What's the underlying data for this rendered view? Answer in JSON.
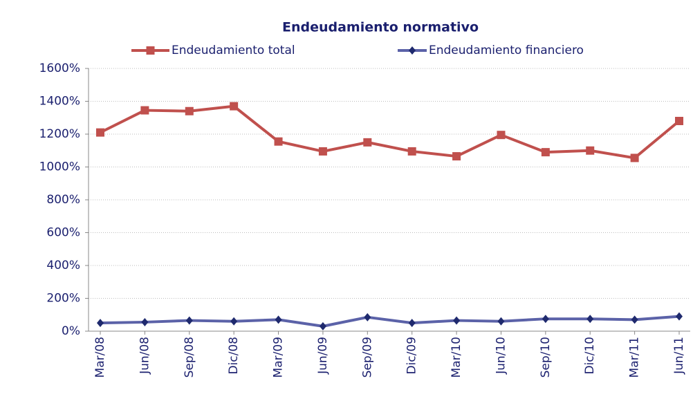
{
  "chart_data": {
    "type": "line",
    "title": "Endeudamiento normativo",
    "categories": [
      "Mar/08",
      "Jun/08",
      "Sep/08",
      "Dic/08",
      "Mar/09",
      "Jun/09",
      "Sep/09",
      "Dic/09",
      "Mar/10",
      "Jun/10",
      "Sep/10",
      "Dic/10",
      "Mar/11",
      "Jun/11"
    ],
    "series": [
      {
        "name": "Endeudamiento total",
        "color": "#c0504d",
        "marker": "square",
        "values": [
          1210,
          1345,
          1340,
          1370,
          1155,
          1095,
          1150,
          1095,
          1065,
          1195,
          1090,
          1100,
          1055,
          1280
        ]
      },
      {
        "name": "Endeudamiento financiero",
        "color": "#5b62a8",
        "marker_color": "#1f2a6e",
        "marker": "diamond",
        "values": [
          50,
          55,
          65,
          60,
          70,
          30,
          85,
          50,
          65,
          60,
          75,
          75,
          70,
          90
        ]
      }
    ],
    "ylim": [
      0,
      1600
    ],
    "yticks": [
      {
        "value": 0,
        "label": "0%"
      },
      {
        "value": 200,
        "label": "200%"
      },
      {
        "value": 400,
        "label": "400%"
      },
      {
        "value": 600,
        "label": "600%"
      },
      {
        "value": 800,
        "label": "800%"
      },
      {
        "value": 1000,
        "label": "1000%"
      },
      {
        "value": 1200,
        "label": "1200%"
      },
      {
        "value": 1400,
        "label": "1400%"
      },
      {
        "value": 1600,
        "label": "1600%"
      }
    ],
    "grid": true,
    "legend": "top"
  }
}
